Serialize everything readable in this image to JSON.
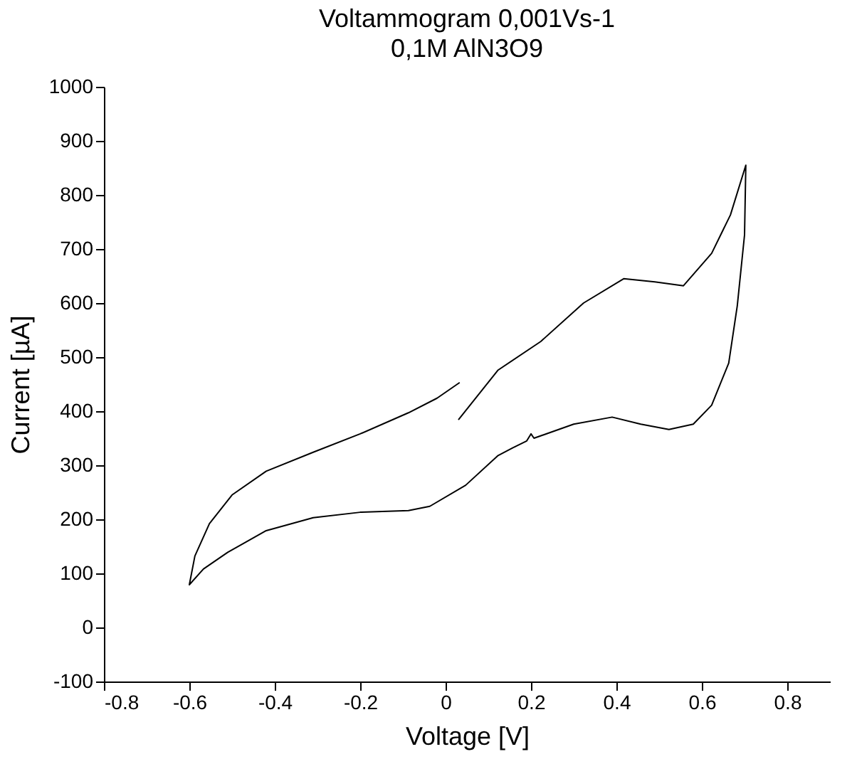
{
  "chart_data": {
    "type": "line",
    "title": "Voltammogram 0,001Vs-1",
    "subtitle": "0,1M AlN3O9",
    "xlabel": "Voltage [V]",
    "ylabel": "Current [µA]",
    "x": [
      0.03,
      0.123,
      0.223,
      0.323,
      0.417,
      0.49,
      0.557,
      0.623,
      0.667,
      0.703,
      0.7,
      0.683,
      0.663,
      0.623,
      0.58,
      0.523,
      0.457,
      0.39,
      0.3,
      0.207,
      0.2,
      0.19,
      0.157,
      0.123,
      0.047,
      -0.037,
      -0.087,
      -0.2,
      -0.31,
      -0.42,
      -0.51,
      -0.567,
      -0.6,
      -0.587,
      -0.553,
      -0.5,
      -0.42,
      -0.31,
      -0.2,
      -0.087,
      -0.02,
      0.033
    ],
    "series": [
      {
        "color": "#000000",
        "values": [
          384,
          476,
          529,
          600,
          645,
          639,
          632,
          692,
          763,
          855,
          726,
          595,
          489,
          411,
          376,
          366,
          376,
          389,
          376,
          350,
          358,
          345,
          332,
          318,
          263,
          224,
          216,
          213,
          203,
          179,
          139,
          108,
          79,
          132,
          192,
          245,
          289,
          324,
          358,
          397,
          424,
          453
        ]
      }
    ],
    "xlim": [
      -0.8,
      0.9
    ],
    "xticks": [
      -0.8,
      -0.6,
      -0.4,
      -0.2,
      0,
      0.2,
      0.4,
      0.6,
      0.8
    ],
    "ylim": [
      -100,
      1000
    ],
    "yticks": [
      -100,
      0,
      100,
      200,
      300,
      400,
      500,
      600,
      700,
      800,
      900,
      1000
    ],
    "grid": false,
    "marker": "none",
    "line_style": "solid"
  }
}
